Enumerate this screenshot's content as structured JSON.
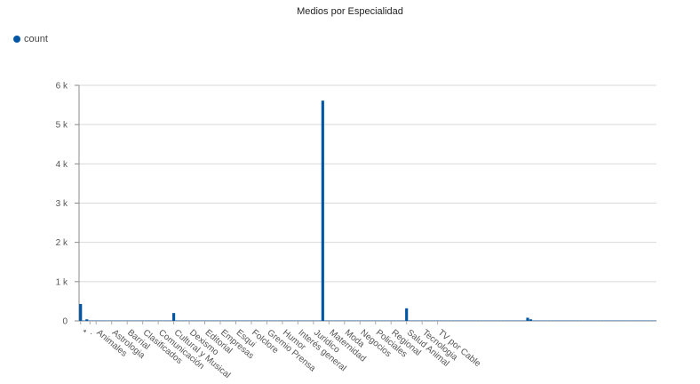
{
  "chart_data": {
    "type": "bar",
    "title": "Medios por Especialidad",
    "legend": {
      "label": "count",
      "color": "#0056a4",
      "position": "top-left"
    },
    "ylim": [
      0,
      6000
    ],
    "y_ticks": [
      "0",
      "1 k",
      "2 k",
      "3 k",
      "4 k",
      "5 k",
      "6 k"
    ],
    "grid": true,
    "series": [
      {
        "name": "count",
        "color": "#0056a4",
        "values": [
          430,
          10,
          40,
          10,
          10,
          10,
          10,
          10,
          10,
          10,
          10,
          10,
          10,
          10,
          10,
          10,
          10,
          10,
          10,
          10,
          10,
          10,
          10,
          10,
          10,
          10,
          10,
          10,
          10,
          10,
          200,
          10,
          10,
          10,
          10,
          10,
          10,
          10,
          10,
          10,
          10,
          10,
          10,
          10,
          10,
          10,
          10,
          10,
          10,
          10,
          10,
          10,
          10,
          10,
          10,
          10,
          10,
          10,
          10,
          10,
          10,
          10,
          10,
          10,
          10,
          10,
          10,
          10,
          10,
          10,
          10,
          10,
          10,
          10,
          10,
          10,
          10,
          10,
          5610,
          10,
          10,
          10,
          10,
          10,
          10,
          10,
          10,
          10,
          10,
          10,
          10,
          10,
          10,
          10,
          10,
          10,
          10,
          10,
          10,
          10,
          10,
          10,
          10,
          10,
          10,
          320,
          10,
          10,
          10,
          10,
          10,
          10,
          10,
          10,
          10,
          10,
          10,
          10,
          10,
          10,
          10,
          10,
          10,
          10,
          10,
          10,
          10,
          10,
          10,
          10,
          10,
          10,
          10,
          10,
          10,
          10,
          10,
          10,
          10,
          10,
          10,
          10,
          10,
          10,
          80,
          40,
          10,
          10,
          10,
          10,
          10,
          10,
          10,
          10,
          10,
          10,
          10,
          10,
          10,
          10,
          10,
          10,
          10,
          10,
          10,
          10,
          10,
          10,
          10,
          10,
          10,
          10,
          10,
          10,
          10,
          10,
          10,
          10,
          10,
          10,
          10,
          10,
          10,
          10,
          10,
          10
        ]
      }
    ],
    "x_labels": [
      {
        "index": 0,
        "text": "*"
      },
      {
        "index": 3,
        "text": "."
      },
      {
        "index": 5,
        "text": "Animales"
      },
      {
        "index": 10,
        "text": "Astrologia"
      },
      {
        "index": 15,
        "text": "Barrial"
      },
      {
        "index": 20,
        "text": "Clasificados"
      },
      {
        "index": 25,
        "text": "Comunicación"
      },
      {
        "index": 30,
        "text": "Cultural y Musical"
      },
      {
        "index": 35,
        "text": "Dexismo"
      },
      {
        "index": 40,
        "text": "Editorial"
      },
      {
        "index": 45,
        "text": "Empresas"
      },
      {
        "index": 50,
        "text": "Esqui"
      },
      {
        "index": 55,
        "text": "Folclore"
      },
      {
        "index": 60,
        "text": "Gremio Prensa"
      },
      {
        "index": 65,
        "text": "Humor"
      },
      {
        "index": 70,
        "text": "Interés general"
      },
      {
        "index": 75,
        "text": "Juridico"
      },
      {
        "index": 80,
        "text": "Maternidad"
      },
      {
        "index": 85,
        "text": "Moda"
      },
      {
        "index": 90,
        "text": "Negocios"
      },
      {
        "index": 95,
        "text": "Policiales"
      },
      {
        "index": 100,
        "text": "Regional"
      },
      {
        "index": 105,
        "text": "Salud Animal"
      },
      {
        "index": 110,
        "text": "Tecnologia"
      },
      {
        "index": 115,
        "text": "TV por Cable"
      }
    ]
  }
}
